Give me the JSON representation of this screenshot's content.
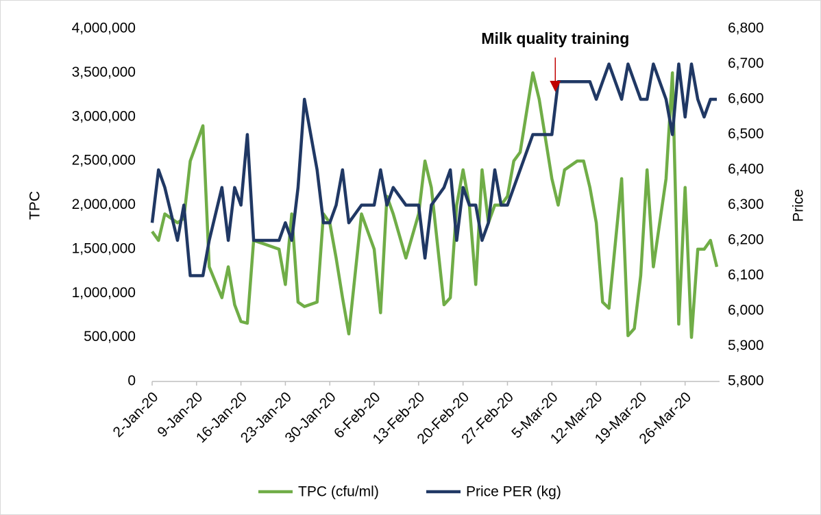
{
  "chart_data": {
    "type": "line",
    "annotation": {
      "text": "Milk quality training",
      "x": "2020-03-05"
    },
    "y_label": "TPC",
    "y2_label": "Price",
    "x": [
      "2020-01-02",
      "2020-01-03",
      "2020-01-04",
      "2020-01-06",
      "2020-01-07",
      "2020-01-08",
      "2020-01-10",
      "2020-01-11",
      "2020-01-13",
      "2020-01-14",
      "2020-01-15",
      "2020-01-16",
      "2020-01-17",
      "2020-01-18",
      "2020-01-20",
      "2020-01-22",
      "2020-01-23",
      "2020-01-24",
      "2020-01-25",
      "2020-01-26",
      "2020-01-28",
      "2020-01-29",
      "2020-01-30",
      "2020-01-31",
      "2020-02-01",
      "2020-02-02",
      "2020-02-04",
      "2020-02-06",
      "2020-02-07",
      "2020-02-08",
      "2020-02-09",
      "2020-02-11",
      "2020-02-13",
      "2020-02-14",
      "2020-02-15",
      "2020-02-17",
      "2020-02-18",
      "2020-02-19",
      "2020-02-20",
      "2020-02-21",
      "2020-02-22",
      "2020-02-23",
      "2020-02-24",
      "2020-02-25",
      "2020-02-26",
      "2020-02-27",
      "2020-02-28",
      "2020-02-29",
      "2020-03-02",
      "2020-03-03",
      "2020-03-05",
      "2020-03-06",
      "2020-03-07",
      "2020-03-09",
      "2020-03-10",
      "2020-03-11",
      "2020-03-12",
      "2020-03-13",
      "2020-03-14",
      "2020-03-16",
      "2020-03-17",
      "2020-03-18",
      "2020-03-19",
      "2020-03-20",
      "2020-03-21",
      "2020-03-23",
      "2020-03-24",
      "2020-03-25",
      "2020-03-26",
      "2020-03-27",
      "2020-03-28",
      "2020-03-29",
      "2020-03-30",
      "2020-03-31"
    ],
    "series": [
      {
        "name": "TPC (cfu/ml)",
        "color": "#70ad47",
        "values": [
          1700000,
          1600000,
          1900000,
          1800000,
          1850000,
          2500000,
          2900000,
          1300000,
          950000,
          1300000,
          870000,
          680000,
          660000,
          1600000,
          1550000,
          1500000,
          1100000,
          1900000,
          900000,
          850000,
          900000,
          1900000,
          1800000,
          1400000,
          950000,
          540000,
          1900000,
          1500000,
          780000,
          2100000,
          1900000,
          1400000,
          1900000,
          2500000,
          2200000,
          870000,
          950000,
          2000000,
          2400000,
          2000000,
          1100000,
          2400000,
          1800000,
          2000000,
          2000000,
          2100000,
          2500000,
          2600000,
          3500000,
          3200000,
          2300000,
          2000000,
          2400000,
          2500000,
          2500000,
          2200000,
          1800000,
          900000,
          830000,
          2300000,
          520000,
          600000,
          1200000,
          2400000,
          1300000,
          2300000,
          3500000,
          650000,
          2200000,
          500000,
          1500000,
          1500000,
          1600000,
          1300000
        ]
      },
      {
        "name": "Price PER (kg)",
        "color": "#203864",
        "axis": "y2",
        "values": [
          6250,
          6400,
          6350,
          6200,
          6300,
          6100,
          6100,
          6200,
          6350,
          6200,
          6350,
          6300,
          6500,
          6200,
          6200,
          6200,
          6250,
          6200,
          6350,
          6600,
          6400,
          6250,
          6250,
          6300,
          6400,
          6250,
          6300,
          6300,
          6400,
          6300,
          6350,
          6300,
          6300,
          6150,
          6300,
          6350,
          6400,
          6200,
          6350,
          6300,
          6300,
          6200,
          6250,
          6400,
          6300,
          6300,
          6350,
          6400,
          6500,
          6500,
          6500,
          6650,
          6650,
          6650,
          6650,
          6650,
          6600,
          6650,
          6700,
          6600,
          6700,
          6650,
          6600,
          6600,
          6700,
          6600,
          6500,
          6700,
          6550,
          6700,
          6600,
          6550,
          6600,
          6600
        ]
      }
    ],
    "xlim": [
      "2020-01-02",
      "2020-03-31"
    ],
    "xticks": [
      {
        "value": "2020-01-02",
        "label": "2-Jan-20"
      },
      {
        "value": "2020-01-09",
        "label": "9-Jan-20"
      },
      {
        "value": "2020-01-16",
        "label": "16-Jan-20"
      },
      {
        "value": "2020-01-23",
        "label": "23-Jan-20"
      },
      {
        "value": "2020-01-30",
        "label": "30-Jan-20"
      },
      {
        "value": "2020-02-06",
        "label": "6-Feb-20"
      },
      {
        "value": "2020-02-13",
        "label": "13-Feb-20"
      },
      {
        "value": "2020-02-20",
        "label": "20-Feb-20"
      },
      {
        "value": "2020-02-27",
        "label": "27-Feb-20"
      },
      {
        "value": "2020-03-05",
        "label": "5-Mar-20"
      },
      {
        "value": "2020-03-12",
        "label": "12-Mar-20"
      },
      {
        "value": "2020-03-19",
        "label": "19-Mar-20"
      },
      {
        "value": "2020-03-26",
        "label": "26-Mar-20"
      }
    ],
    "ylim": [
      0,
      4000000
    ],
    "yticks": [
      0,
      {
        "value": 500000,
        "label": "500,000"
      },
      {
        "value": 1000000,
        "label": "1,000,000"
      },
      {
        "value": 1500000,
        "label": "1,500,000"
      },
      {
        "value": 2000000,
        "label": "2,000,000"
      },
      {
        "value": 2500000,
        "label": "2,500,000"
      },
      {
        "value": 3000000,
        "label": "3,000,000"
      },
      {
        "value": 3500000,
        "label": "3,500,000"
      },
      {
        "value": 4000000,
        "label": "4,000,000"
      }
    ],
    "y2lim": [
      5800,
      6800
    ],
    "y2ticks": [
      {
        "value": 5800,
        "label": "5,800"
      },
      {
        "value": 5900,
        "label": "5,900"
      },
      {
        "value": 6000,
        "label": "6,000"
      },
      {
        "value": 6100,
        "label": "6,100"
      },
      {
        "value": 6200,
        "label": "6,200"
      },
      {
        "value": 6300,
        "label": "6,300"
      },
      {
        "value": 6400,
        "label": "6,400"
      },
      {
        "value": 6500,
        "label": "6,500"
      },
      {
        "value": 6600,
        "label": "6,600"
      },
      {
        "value": 6700,
        "label": "6,700"
      },
      {
        "value": 6800,
        "label": "6,800"
      }
    ],
    "legend": "bottom",
    "grid": false
  }
}
